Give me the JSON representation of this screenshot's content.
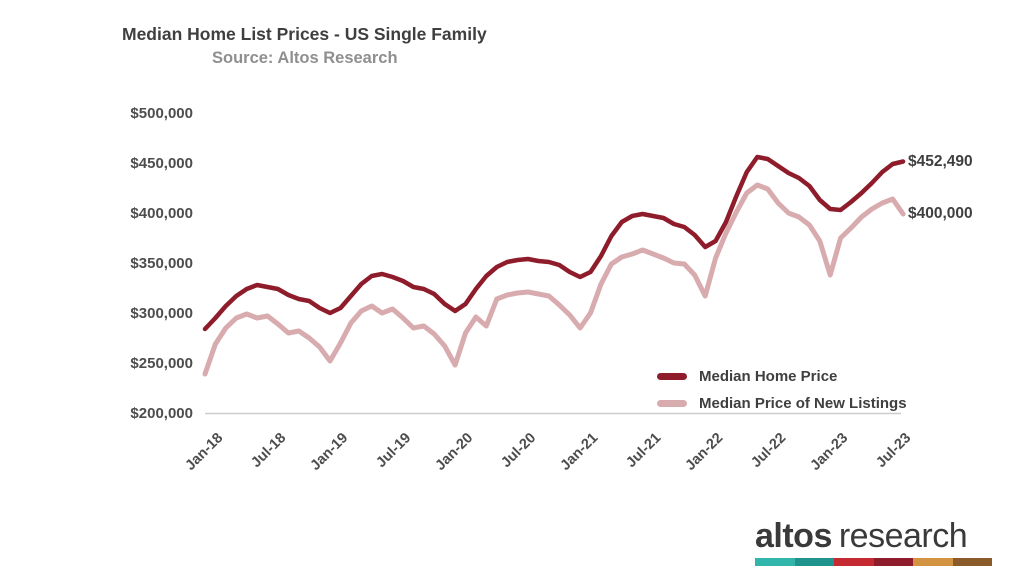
{
  "header": {
    "title": "Median Home List Prices - US Single Family",
    "subtitle": "Source: Altos Research"
  },
  "chart_data": {
    "type": "line",
    "title": "Median Home List Prices - US Single Family",
    "subtitle": "Source: Altos Research",
    "x_unit": "month",
    "x_start": "Jan-18",
    "x_ticks": [
      {
        "label": "Jan-18",
        "month": 0
      },
      {
        "label": "Jul-18",
        "month": 6
      },
      {
        "label": "Jan-19",
        "month": 12
      },
      {
        "label": "Jul-19",
        "month": 18
      },
      {
        "label": "Jan-20",
        "month": 24
      },
      {
        "label": "Jul-20",
        "month": 30
      },
      {
        "label": "Jan-21",
        "month": 36
      },
      {
        "label": "Jul-21",
        "month": 42
      },
      {
        "label": "Jan-22",
        "month": 48
      },
      {
        "label": "Jul-22",
        "month": 54
      },
      {
        "label": "Jan-23",
        "month": 60
      },
      {
        "label": "Jul-23",
        "month": 66
      }
    ],
    "ylim": [
      200000,
      500000
    ],
    "y_ticks": {
      "labels": [
        "$500,000",
        "$450,000",
        "$400,000",
        "$350,000",
        "$300,000",
        "$250,000",
        "$200,000"
      ],
      "values": [
        500000,
        450000,
        400000,
        350000,
        300000,
        250000,
        200000
      ]
    },
    "grid": false,
    "legend_position": "lower right",
    "series": [
      {
        "name": "Median Home Price",
        "color": "#8e1c2b",
        "values": [
          285000,
          296000,
          308000,
          318000,
          325000,
          329000,
          327000,
          325000,
          319000,
          315000,
          313000,
          306000,
          301000,
          306000,
          318000,
          330000,
          338000,
          340000,
          337000,
          333000,
          327000,
          325000,
          320000,
          310000,
          303000,
          310000,
          325000,
          338000,
          347000,
          352000,
          354000,
          355000,
          353000,
          352000,
          349000,
          342000,
          337000,
          342000,
          358000,
          378000,
          392000,
          398000,
          400000,
          398000,
          396000,
          390000,
          387000,
          379000,
          367000,
          373000,
          392000,
          418000,
          442000,
          457000,
          455000,
          448000,
          441000,
          436000,
          428000,
          414000,
          405000,
          404000,
          412000,
          421000,
          431000,
          442000,
          450000,
          452490
        ]
      },
      {
        "name": "Median Price of New Listings",
        "color": "#d8abae",
        "values": [
          240000,
          270000,
          286000,
          296000,
          300000,
          296000,
          298000,
          290000,
          281000,
          283000,
          276000,
          267000,
          253000,
          271000,
          291000,
          303000,
          308000,
          301000,
          305000,
          296000,
          286000,
          288000,
          280000,
          268000,
          249000,
          281000,
          297000,
          288000,
          315000,
          319000,
          321000,
          322000,
          320000,
          318000,
          309000,
          299000,
          286000,
          301000,
          330000,
          350000,
          357000,
          360000,
          364000,
          360000,
          356000,
          351000,
          350000,
          339000,
          318000,
          356000,
          381000,
          402000,
          421000,
          429000,
          425000,
          411000,
          401000,
          397000,
          389000,
          373000,
          339000,
          376000,
          386000,
          397000,
          405000,
          411000,
          415000,
          400000
        ]
      }
    ],
    "end_labels": [
      "$452,490",
      "$400,000"
    ]
  },
  "logo": {
    "bold": "altos",
    "light": "research",
    "bar_colors": [
      "#32b6ab",
      "#20948c",
      "#c52a33",
      "#8e1c2b",
      "#d29440",
      "#8a5a28"
    ]
  }
}
